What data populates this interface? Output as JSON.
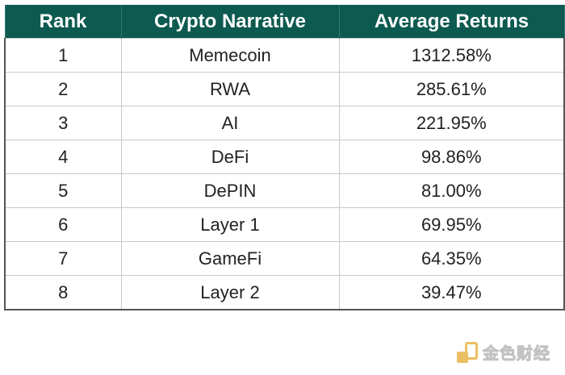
{
  "table": {
    "headers": [
      "Rank",
      "Crypto Narrative",
      "Average Returns"
    ],
    "rows": [
      {
        "rank": "1",
        "narrative": "Memecoin",
        "returns": "1312.58%"
      },
      {
        "rank": "2",
        "narrative": "RWA",
        "returns": "285.61%"
      },
      {
        "rank": "3",
        "narrative": "AI",
        "returns": "221.95%"
      },
      {
        "rank": "4",
        "narrative": "DeFi",
        "returns": "98.86%"
      },
      {
        "rank": "5",
        "narrative": "DePIN",
        "returns": "81.00%"
      },
      {
        "rank": "6",
        "narrative": "Layer 1",
        "returns": "69.95%"
      },
      {
        "rank": "7",
        "narrative": "GameFi",
        "returns": "64.35%"
      },
      {
        "rank": "8",
        "narrative": "Layer 2",
        "returns": "39.47%"
      }
    ]
  },
  "watermark": {
    "text": "金色财经",
    "icon": "jinse-logo-icon"
  },
  "colors": {
    "header_bg": "#0d5a50",
    "header_text": "#ffffff",
    "logo_accent": "#e8b54a"
  }
}
